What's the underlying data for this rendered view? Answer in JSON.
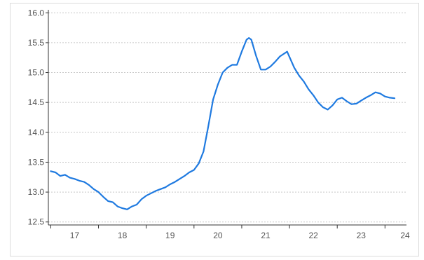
{
  "chart_data": {
    "type": "line",
    "title": "",
    "xlabel": "",
    "ylabel": "",
    "xlim": [
      16.45,
      23.95
    ],
    "ylim": [
      12.45,
      16.05
    ],
    "y_ticks": [
      "12.5",
      "13.0",
      "13.5",
      "14.0",
      "14.5",
      "15.0",
      "15.5",
      "16.0"
    ],
    "x_ticks": [
      "17",
      "18",
      "19",
      "20",
      "21",
      "22",
      "23",
      "24"
    ],
    "grid": "horizontal dotted",
    "legend": "none",
    "colors": {
      "line": "#1f7ae0",
      "grid": "#c8c8c8",
      "axis": "#333333"
    },
    "series": [
      {
        "x": [
          16.5,
          16.6,
          16.7,
          16.8,
          16.9,
          17.0,
          17.1,
          17.2,
          17.3,
          17.4,
          17.5,
          17.6,
          17.7,
          17.8,
          17.9,
          18.0,
          18.1,
          18.2,
          18.3,
          18.4,
          18.5,
          18.6,
          18.7,
          18.8,
          18.9,
          19.0,
          19.1,
          19.2,
          19.3,
          19.4,
          19.5,
          19.6,
          19.7,
          19.8,
          19.9,
          20.0,
          20.1,
          20.2,
          20.3,
          20.4,
          20.5,
          20.6,
          20.65,
          20.7,
          20.8,
          20.9,
          21.0,
          21.1,
          21.2,
          21.3,
          21.45,
          21.6,
          21.7,
          21.8,
          21.9,
          22.0,
          22.1,
          22.2,
          22.3,
          22.4,
          22.5,
          22.6,
          22.7,
          22.8,
          22.9,
          23.0,
          23.1,
          23.2,
          23.3,
          23.4,
          23.5,
          23.6,
          23.7
        ],
        "y": [
          13.35,
          13.33,
          13.27,
          13.29,
          13.24,
          13.22,
          13.19,
          13.17,
          13.12,
          13.05,
          13.0,
          12.92,
          12.85,
          12.83,
          12.76,
          12.73,
          12.71,
          12.76,
          12.79,
          12.88,
          12.94,
          12.98,
          13.02,
          13.05,
          13.08,
          13.13,
          13.17,
          13.22,
          13.27,
          13.33,
          13.37,
          13.48,
          13.68,
          14.1,
          14.55,
          14.8,
          15.0,
          15.08,
          15.13,
          15.13,
          15.35,
          15.55,
          15.58,
          15.55,
          15.28,
          15.05,
          15.05,
          15.1,
          15.18,
          15.27,
          15.35,
          15.08,
          14.95,
          14.85,
          14.72,
          14.62,
          14.5,
          14.42,
          14.38,
          14.45,
          14.55,
          14.58,
          14.52,
          14.47,
          14.48,
          14.53,
          14.58,
          14.62,
          14.67,
          14.65,
          14.6,
          14.58,
          14.57
        ]
      }
    ]
  }
}
